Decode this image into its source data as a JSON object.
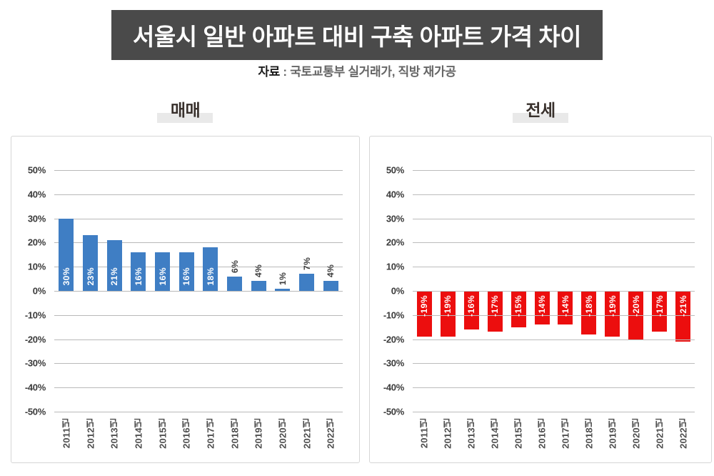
{
  "title": "서울시 일반 아파트 대비 구축 아파트 가격 차이",
  "source": {
    "prefix": "자료",
    "text": " : 국토교통부 실거래가, 직방 재가공"
  },
  "colors": {
    "banner_bg": "#4a4a4a",
    "banner_text": "#ffffff",
    "sale_bar": "#3f7ec4",
    "jeonse_bar": "#ec0e0e",
    "gridline": "#b9b9b9",
    "heading_highlight": "#e9e9e9"
  },
  "chart_data": [
    {
      "type": "bar",
      "title": "매매",
      "categories": [
        "2011년",
        "2012년",
        "2013년",
        "2014년",
        "2015년",
        "2016년",
        "2017년",
        "2018년",
        "2019년",
        "2020년",
        "2021년",
        "2022년"
      ],
      "values": [
        30,
        23,
        21,
        16,
        16,
        16,
        18,
        6,
        4,
        1,
        7,
        4
      ],
      "unit": "%",
      "ylim": [
        -50,
        50
      ],
      "ystep": 10,
      "grid": true,
      "legend": "none",
      "bar_color": "#3f7ec4",
      "label_inside_min": 10,
      "gridlines_over_bars": false
    },
    {
      "type": "bar",
      "title": "전세",
      "categories": [
        "2011년",
        "2012년",
        "2013년",
        "2014년",
        "2015년",
        "2016년",
        "2017년",
        "2018년",
        "2019년",
        "2020년",
        "2021년",
        "2022년"
      ],
      "values": [
        -19,
        -19,
        -16,
        -17,
        -15,
        -14,
        -14,
        -18,
        -19,
        -20,
        -17,
        -21
      ],
      "unit": "%",
      "ylim": [
        -50,
        50
      ],
      "ystep": 10,
      "grid": true,
      "legend": "none",
      "bar_color": "#ec0e0e",
      "label_inside_min": 0,
      "gridlines_over_bars": true
    }
  ]
}
